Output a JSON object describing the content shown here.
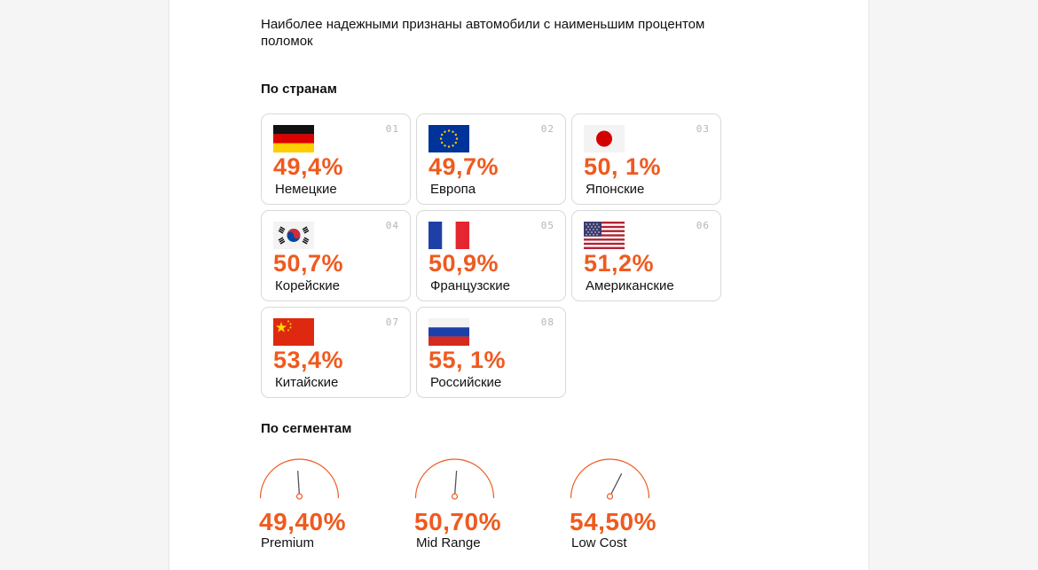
{
  "intro": "Наиболее надежными   признаны автомобили с наименьшим процентом поломок",
  "countries_title": "По странам",
  "segments_title": "По сегментам",
  "accent": "#ef5a1f",
  "countries": [
    {
      "num": "01",
      "pct": "49,4%",
      "label": "Немецкие",
      "flag": "germany-flag-icon"
    },
    {
      "num": "02",
      "pct": "49,7%",
      "label": "Европа",
      "flag": "eu-flag-icon"
    },
    {
      "num": "03",
      "pct": "50, 1%",
      "label": "Японские",
      "flag": "japan-flag-icon"
    },
    {
      "num": "04",
      "pct": "50,7%",
      "label": "Корейские",
      "flag": "korea-flag-icon"
    },
    {
      "num": "05",
      "pct": "50,9%",
      "label": "Французские",
      "flag": "france-flag-icon"
    },
    {
      "num": "06",
      "pct": "51,2%",
      "label": "Американские",
      "flag": "usa-flag-icon"
    },
    {
      "num": "07",
      "pct": "53,4%",
      "label": "Китайские",
      "flag": "china-flag-icon"
    },
    {
      "num": "08",
      "pct": "55, 1%",
      "label": "Российские",
      "flag": "russia-flag-icon"
    }
  ],
  "segments": [
    {
      "pct": "49,40%",
      "label": "Premium",
      "value": 49.4,
      "icon": "gauge-icon"
    },
    {
      "pct": "50,70%",
      "label": "Mid Range",
      "value": 50.7,
      "icon": "gauge-icon"
    },
    {
      "pct": "54,50%",
      "label": "Low Cost",
      "value": 54.5,
      "icon": "gauge-icon"
    }
  ]
}
